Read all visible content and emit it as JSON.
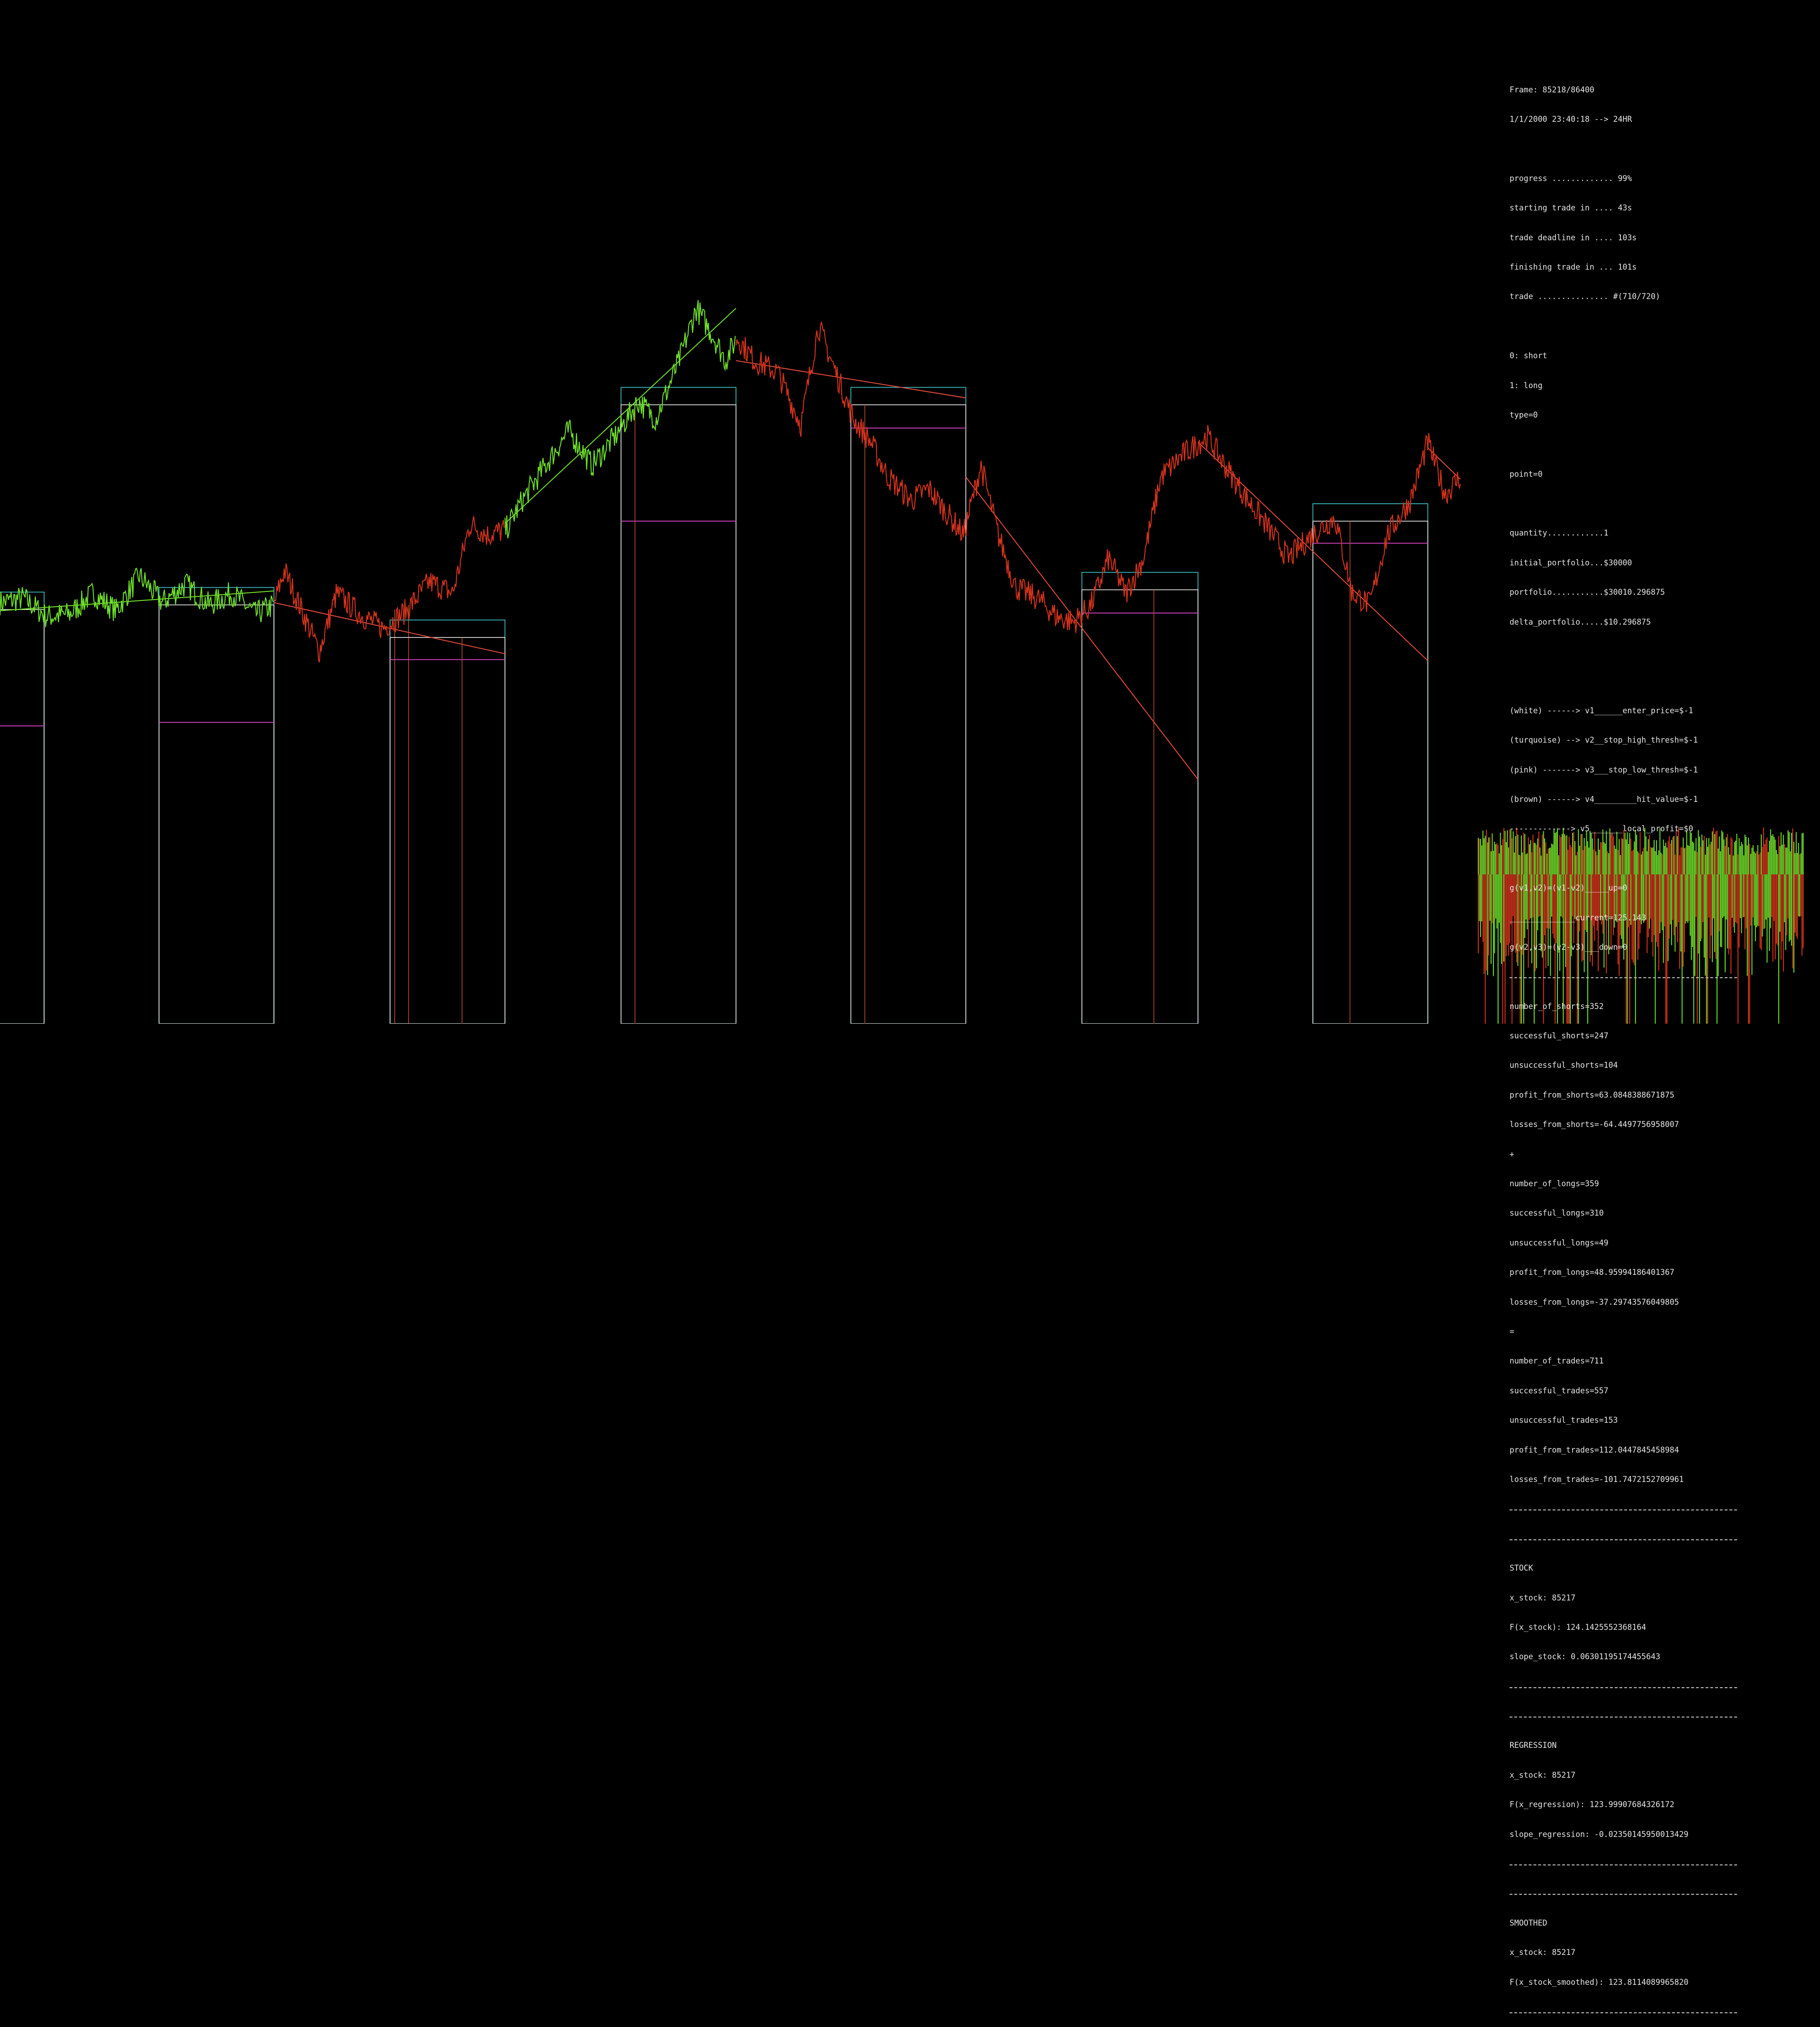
{
  "hud": {
    "frame": "Frame: 85218/86400",
    "datetime": "1/1/2000 23:40:18 --> 24HR",
    "progress": "progress ............. 99%",
    "starting": "starting trade in .... 43s",
    "deadline": "trade deadline in .... 103s",
    "finishing": "finishing trade in ... 101s",
    "trade": "trade ............... #(710/720)",
    "type_short": "0: short",
    "type_long": "1: long",
    "type": "type=0",
    "point": "point=0",
    "quantity": "quantity............1",
    "initial_portfolio": "initial_portfolio...$30000",
    "portfolio": "portfolio...........$30010.296875",
    "delta_portfolio": "delta_portfolio.....$10.296875",
    "v1": "(white) ------> v1______enter_price=$-1",
    "v2": "(turquoise) --> v2__stop_high_thresh=$-1",
    "v3": "(pink) -------> v3___stop_low_thresh=$-1",
    "v4": "(brown) ------> v4_________hit_value=$-1",
    "v5": "-------------> v5_______local_profit=$0",
    "g_up": "g(v1,v2)=(v1-v2)_____up=0",
    "g_current": "______________current=125.143",
    "g_down": "g(v2,v3)=(v2-v3)___down=0",
    "number_of_shorts": "number_of_shorts=352",
    "successful_shorts": "successful_shorts=247",
    "unsuccessful_shorts": "unsuccessful_shorts=104",
    "profit_from_shorts": "profit_from_shorts=63.0848388671875",
    "losses_from_shorts": "losses_from_shorts=-64.4497756958007",
    "plus": "+",
    "number_of_longs": "number_of_longs=359",
    "successful_longs": "successful_longs=310",
    "unsuccessful_longs": "unsuccessful_longs=49",
    "profit_from_longs": "profit_from_longs=48.95994186401367",
    "losses_from_longs": "losses_from_longs=-37.29743576049805",
    "equals": "=",
    "number_of_trades": "number_of_trades=711",
    "successful_trades": "successful_trades=557",
    "unsuccessful_trades": "unsuccessful_trades=153",
    "profit_from_trades": "profit_from_trades=112.0447845458984",
    "losses_from_trades": "losses_from_trades=-101.7472152709961",
    "stock_title": "STOCK",
    "stock_x": "x_stock: 85217",
    "stock_f": "F(x_stock): 124.1425552368164",
    "stock_slope": "slope_stock: 0.06301195174455643",
    "regression_title": "REGRESSION",
    "regression_x": "x_stock: 85217",
    "regression_f": "F(x_regression): 123.99907684326172",
    "regression_slope": "slope_regression: -0.02350145950013429",
    "smoothed_title": "SMOOTHED",
    "smoothed_x": "x_stock: 85217",
    "smoothed_f": "F(x_stock_smoothed): 123.8114089965820"
  },
  "colors": {
    "up": "#6fe02a",
    "down": "#d6331c",
    "white": "#e8e8e8",
    "turquoise": "#3fc7c7",
    "pink": "#c43fb0",
    "brown": "#b04a2a",
    "regression": "#e04a3a",
    "hud_text": "#e6e6e6"
  },
  "chart_data": {
    "type": "line",
    "title": "",
    "xlabel": "",
    "ylabel": "",
    "grid": false,
    "legend": "none",
    "xlim": [
      0,
      1260
    ],
    "ylim": [
      0,
      880
    ],
    "note_units": "price axis unlabeled; values are relative chart units (higher = higher price)",
    "price_anchors": [
      [
        0,
        362
      ],
      [
        20,
        366
      ],
      [
        40,
        350
      ],
      [
        60,
        352
      ],
      [
        80,
        370
      ],
      [
        100,
        355
      ],
      [
        120,
        385
      ],
      [
        140,
        362
      ],
      [
        160,
        378
      ],
      [
        180,
        360
      ],
      [
        200,
        370
      ],
      [
        220,
        352
      ],
      [
        236,
        360
      ],
      [
        245,
        390
      ],
      [
        260,
        355
      ],
      [
        275,
        320
      ],
      [
        290,
        370
      ],
      [
        310,
        352
      ],
      [
        330,
        340
      ],
      [
        350,
        355
      ],
      [
        370,
        380
      ],
      [
        390,
        370
      ],
      [
        405,
        430
      ],
      [
        420,
        420
      ],
      [
        436,
        425
      ],
      [
        450,
        450
      ],
      [
        470,
        480
      ],
      [
        490,
        510
      ],
      [
        510,
        480
      ],
      [
        530,
        505
      ],
      [
        550,
        535
      ],
      [
        565,
        520
      ],
      [
        585,
        570
      ],
      [
        600,
        615
      ],
      [
        615,
        590
      ],
      [
        625,
        570
      ],
      [
        635,
        590
      ],
      [
        650,
        570
      ],
      [
        670,
        560
      ],
      [
        690,
        515
      ],
      [
        705,
        600
      ],
      [
        720,
        560
      ],
      [
        735,
        520
      ],
      [
        750,
        500
      ],
      [
        765,
        470
      ],
      [
        785,
        450
      ],
      [
        800,
        460
      ],
      [
        815,
        440
      ],
      [
        830,
        420
      ],
      [
        845,
        480
      ],
      [
        860,
        420
      ],
      [
        875,
        375
      ],
      [
        895,
        365
      ],
      [
        910,
        350
      ],
      [
        925,
        345
      ],
      [
        940,
        360
      ],
      [
        955,
        400
      ],
      [
        970,
        370
      ],
      [
        985,
        400
      ],
      [
        1000,
        470
      ],
      [
        1020,
        490
      ],
      [
        1040,
        505
      ],
      [
        1055,
        480
      ],
      [
        1075,
        450
      ],
      [
        1090,
        430
      ],
      [
        1110,
        400
      ],
      [
        1130,
        420
      ],
      [
        1150,
        435
      ],
      [
        1165,
        370
      ],
      [
        1180,
        360
      ],
      [
        1195,
        420
      ],
      [
        1215,
        450
      ],
      [
        1230,
        500
      ],
      [
        1245,
        455
      ],
      [
        1258,
        470
      ]
    ],
    "trend_segments": [
      {
        "name": "up",
        "x": [
          0,
          236
        ]
      },
      {
        "name": "down",
        "x": [
          236,
          435
        ]
      },
      {
        "name": "up",
        "x": [
          435,
          634
        ]
      },
      {
        "name": "down",
        "x": [
          634,
          1258
        ]
      }
    ],
    "regression_lines": [
      [
        [
          0,
          355
        ],
        [
          236,
          372
        ]
      ],
      [
        [
          236,
          362
        ],
        [
          435,
          318
        ]
      ],
      [
        [
          435,
          430
        ],
        [
          634,
          615
        ]
      ],
      [
        [
          634,
          570
        ],
        [
          832,
          538
        ]
      ],
      [
        [
          832,
          470
        ],
        [
          1032,
          210
        ]
      ],
      [
        [
          1032,
          500
        ],
        [
          1230,
          312
        ]
      ],
      [
        [
          1230,
          495
        ],
        [
          1258,
          468
        ]
      ]
    ],
    "trade_boxes": [
      {
        "x0": -100,
        "x1": 38,
        "entry": 356,
        "high": 366,
        "low": 256,
        "hit": 340
      },
      {
        "x0": 137,
        "x1": 236,
        "entry": 360,
        "high": 368,
        "low": 259,
        "hit": 352
      },
      {
        "x0": 336,
        "x1": 435,
        "entry": 332,
        "high": 392,
        "low": 313,
        "hit": 398
      },
      {
        "x0": 535,
        "x1": 634,
        "entry": 532,
        "high": 541,
        "low": 432,
        "hit": 547
      },
      {
        "x0": 733,
        "x1": 832,
        "entry": 532,
        "high": 591,
        "low": 512,
        "hit": 745
      },
      {
        "x0": 932,
        "x1": 1032,
        "entry": 373,
        "high": 432,
        "low": 353,
        "hit": 994
      },
      {
        "x0": 1131,
        "x1": 1230,
        "entry": 432,
        "high": 491,
        "low": 413,
        "hit": 1163
      }
    ],
    "histogram": {
      "bars": 280,
      "up_heights_range": [
        18,
        45
      ],
      "down_heights_range": [
        40,
        115
      ]
    }
  }
}
